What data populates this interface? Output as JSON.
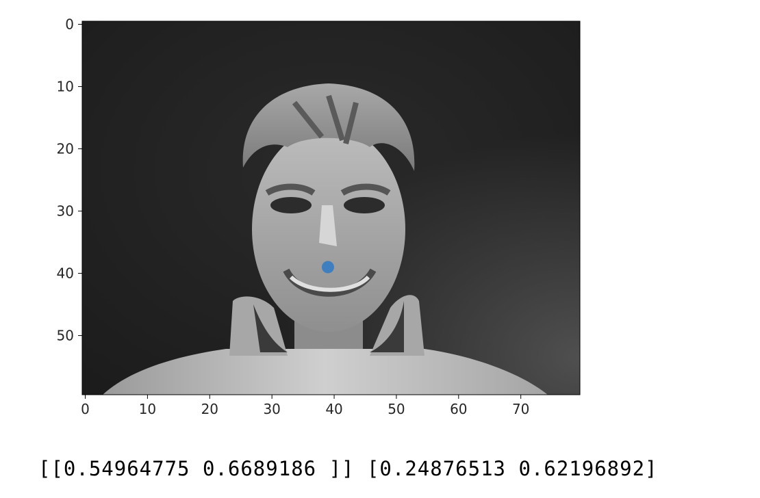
{
  "chart_data": {
    "type": "scatter",
    "image": "grayscale face photo, 80x60 pixels, shown with imshow",
    "xlim": [
      -0.5,
      79.5
    ],
    "ylim": [
      59.5,
      -0.5
    ],
    "y_inverted": true,
    "x_ticks": [
      0,
      10,
      20,
      30,
      40,
      50,
      60,
      70
    ],
    "y_ticks": [
      0,
      10,
      20,
      30,
      40,
      50
    ],
    "grid": false,
    "series": [
      {
        "points": [
          [
            39,
            39
          ]
        ],
        "color": "#3f7fc0",
        "marker": "circle"
      }
    ]
  },
  "output_text": "[[0.54964775 0.6689186 ]] [0.24876513 0.62196892]"
}
